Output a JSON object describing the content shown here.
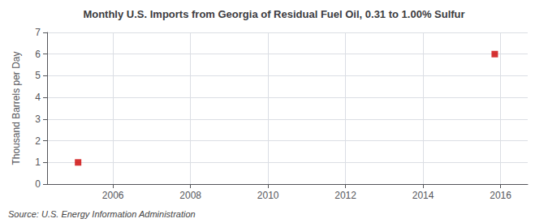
{
  "chart_data": {
    "type": "scatter",
    "title": "Monthly U.S. Imports from Georgia of Residual Fuel Oil, 0.31 to 1.00% Sulfur",
    "ylabel": "Thousand Barrels per Day",
    "annotation": "Source: U.S. Energy Information Administration",
    "x": [
      2005.1,
      2015.85
    ],
    "values": [
      1.0,
      6.0
    ],
    "color": "#cc0000",
    "marker": "square",
    "xlim": [
      2004.3,
      2016.7
    ],
    "xticks": [
      2006,
      2008,
      2010,
      2012,
      2014,
      2016
    ],
    "ylim": [
      0,
      7
    ],
    "yticks": [
      0,
      1,
      2,
      3,
      4,
      5,
      6,
      7
    ],
    "grid": true
  }
}
